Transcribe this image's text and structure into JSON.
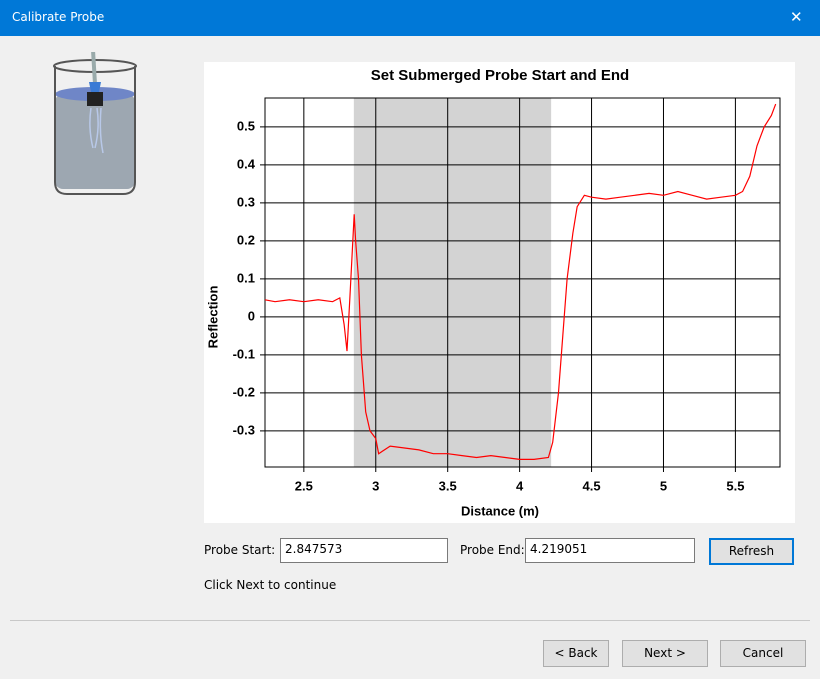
{
  "window": {
    "title": "Calibrate Probe",
    "close": "✕"
  },
  "chart_data": {
    "type": "line",
    "title": "Set Submerged Probe Start and End",
    "x_label": "Distance (m)",
    "y_label": "Reflection",
    "x": [
      2.23,
      2.3,
      2.4,
      2.5,
      2.6,
      2.7,
      2.75,
      2.78,
      2.8,
      2.82,
      2.85,
      2.86,
      2.88,
      2.9,
      2.93,
      2.96,
      3.0,
      3.02,
      3.1,
      3.2,
      3.3,
      3.4,
      3.5,
      3.6,
      3.7,
      3.8,
      3.9,
      4.0,
      4.1,
      4.2,
      4.23,
      4.27,
      4.3,
      4.33,
      4.37,
      4.4,
      4.45,
      4.5,
      4.6,
      4.7,
      4.8,
      4.9,
      5.0,
      5.1,
      5.2,
      5.3,
      5.4,
      5.5,
      5.55,
      5.6,
      5.65,
      5.7,
      5.75,
      5.78
    ],
    "values": [
      0.045,
      0.04,
      0.045,
      0.04,
      0.045,
      0.04,
      0.05,
      -0.02,
      -0.09,
      0.05,
      0.27,
      0.2,
      0.1,
      -0.1,
      -0.25,
      -0.3,
      -0.32,
      -0.36,
      -0.34,
      -0.345,
      -0.35,
      -0.36,
      -0.36,
      -0.365,
      -0.37,
      -0.365,
      -0.37,
      -0.375,
      -0.375,
      -0.37,
      -0.33,
      -0.2,
      -0.05,
      0.1,
      0.22,
      0.29,
      0.32,
      0.315,
      0.31,
      0.315,
      0.32,
      0.325,
      0.32,
      0.33,
      0.32,
      0.31,
      0.315,
      0.32,
      0.33,
      0.37,
      0.45,
      0.5,
      0.53,
      0.56
    ],
    "color": "#ff0000",
    "band_color": "#d3d3d3",
    "grid": true,
    "xlim": [
      2.23,
      5.81
    ],
    "xticks": [
      2.5,
      3,
      3.5,
      4,
      4.5,
      5,
      5.5
    ],
    "ylim": [
      -0.395,
      0.576
    ],
    "yticks": [
      0.5,
      0.4,
      0.3,
      0.2,
      0.1,
      0,
      -0.1,
      -0.2,
      -0.3
    ]
  },
  "form": {
    "probe_start": {
      "label": "Probe Start:",
      "value": 2.847573
    },
    "probe_end": {
      "label": "Probe End:",
      "value": 4.219051
    },
    "refresh": "Refresh",
    "hint": "Click Next to continue"
  },
  "buttons": {
    "back": "< Back",
    "next": "Next >",
    "cancel": "Cancel"
  }
}
